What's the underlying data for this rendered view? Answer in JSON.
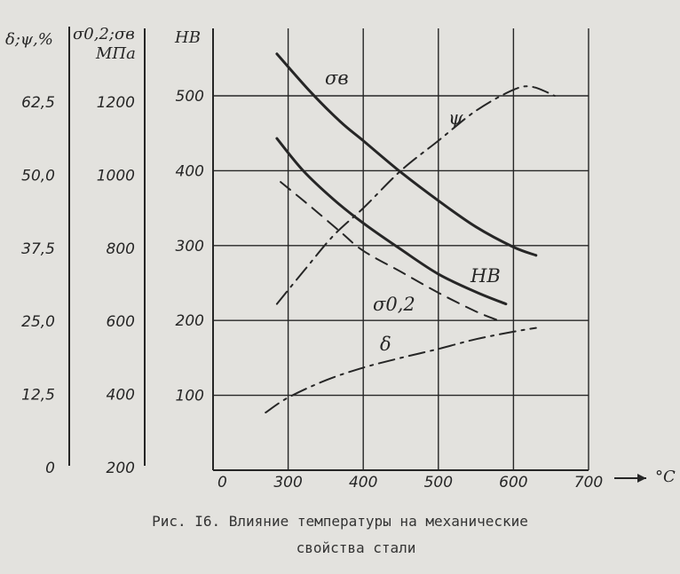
{
  "chart_data": {
    "type": "line",
    "axes": {
      "hb": {
        "label": "НВ",
        "range": [
          0,
          500
        ],
        "ticks": [
          "100",
          "200",
          "300",
          "400",
          "500"
        ]
      },
      "strength": {
        "label_line1": "σ0,2;σв",
        "label_line2": "МПа",
        "range": [
          200,
          1200
        ],
        "ticks": [
          "200",
          "400",
          "600",
          "800",
          "1000",
          "1200"
        ]
      },
      "plasticity": {
        "label": "δ;ψ,%",
        "range": [
          0,
          62.5
        ],
        "ticks": [
          "0",
          "12,5",
          "25,0",
          "37,5",
          "50,0",
          "62,5"
        ]
      },
      "temperature": {
        "label": "°C",
        "range": [
          200,
          700
        ],
        "origin_label": "0",
        "ticks": [
          "300",
          "400",
          "500",
          "600",
          "700"
        ]
      }
    },
    "grid": true,
    "series": [
      {
        "name": "σв",
        "axis": "hb",
        "style": "solid",
        "points": [
          [
            285,
            556
          ],
          [
            330,
            505
          ],
          [
            370,
            465
          ],
          [
            400,
            440
          ],
          [
            450,
            398
          ],
          [
            500,
            360
          ],
          [
            550,
            325
          ],
          [
            600,
            298
          ],
          [
            630,
            287
          ]
        ]
      },
      {
        "name": "НВ",
        "axis": "hb",
        "style": "solid",
        "points": [
          [
            285,
            443
          ],
          [
            320,
            400
          ],
          [
            360,
            362
          ],
          [
            400,
            330
          ],
          [
            450,
            295
          ],
          [
            500,
            262
          ],
          [
            550,
            238
          ],
          [
            590,
            222
          ]
        ]
      },
      {
        "name": "σ0,2",
        "axis": "hb",
        "style": "dashed",
        "points": [
          [
            290,
            385
          ],
          [
            330,
            352
          ],
          [
            370,
            318
          ],
          [
            400,
            293
          ],
          [
            450,
            265
          ],
          [
            500,
            237
          ],
          [
            550,
            212
          ],
          [
            580,
            200
          ]
        ]
      },
      {
        "name": "ψ",
        "axis": "hb",
        "style": "dashdot",
        "points": [
          [
            285,
            222
          ],
          [
            320,
            265
          ],
          [
            360,
            313
          ],
          [
            400,
            350
          ],
          [
            450,
            400
          ],
          [
            500,
            440
          ],
          [
            550,
            480
          ],
          [
            600,
            508
          ],
          [
            625,
            512
          ],
          [
            655,
            500
          ]
        ]
      },
      {
        "name": "δ",
        "axis": "hb",
        "style": "dashdot",
        "points": [
          [
            270,
            77
          ],
          [
            300,
            97
          ],
          [
            350,
            120
          ],
          [
            400,
            137
          ],
          [
            450,
            150
          ],
          [
            500,
            162
          ],
          [
            550,
            175
          ],
          [
            600,
            185
          ],
          [
            630,
            190
          ]
        ]
      }
    ]
  },
  "caption": {
    "line1": "Рис. I6. Влияние температуры на механические",
    "line2": "свойства стали"
  }
}
